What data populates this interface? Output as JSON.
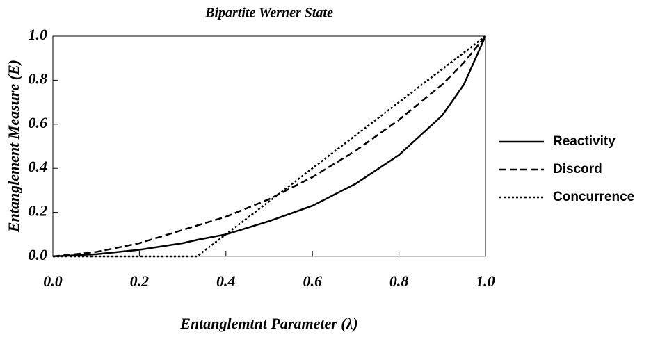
{
  "chart_data": {
    "type": "line",
    "title": "Bipartite Werner State",
    "xlabel": "Entanglemtnt Parameter (λ)",
    "ylabel": "Entanglement Measure (E)",
    "x": [
      0,
      0.1,
      0.2,
      0.3,
      0.333,
      0.4,
      0.5,
      0.6,
      0.7,
      0.8,
      0.9,
      0.95,
      1
    ],
    "series": [
      {
        "name": "Reactivity",
        "color": "#000000",
        "line_style": "solid",
        "values": [
          0,
          0.01,
          0.03,
          0.06,
          0.075,
          0.1,
          0.16,
          0.23,
          0.33,
          0.46,
          0.64,
          0.78,
          1
        ]
      },
      {
        "name": "Discord",
        "color": "#000000",
        "line_style": "dashed",
        "values": [
          0,
          0.02,
          0.06,
          0.12,
          0.14,
          0.18,
          0.26,
          0.36,
          0.48,
          0.62,
          0.78,
          0.88,
          1
        ]
      },
      {
        "name": "Concurrence",
        "color": "#000000",
        "line_style": "dotted",
        "values": [
          0,
          0,
          0,
          0,
          0,
          0.1,
          0.25,
          0.4,
          0.55,
          0.7,
          0.85,
          0.925,
          1
        ]
      }
    ],
    "xlim": [
      0,
      1
    ],
    "ylim": [
      0,
      1
    ],
    "xticks": [
      {
        "value": 0,
        "label": "0.0"
      },
      0.2,
      0.4,
      0.6,
      0.8,
      {
        "value": 1,
        "label": "1.0"
      }
    ],
    "yticks": [
      {
        "value": 0,
        "label": "0.0"
      },
      0.2,
      0.4,
      0.6,
      0.8,
      {
        "value": 1,
        "label": "1.0"
      }
    ],
    "legend": "right"
  }
}
